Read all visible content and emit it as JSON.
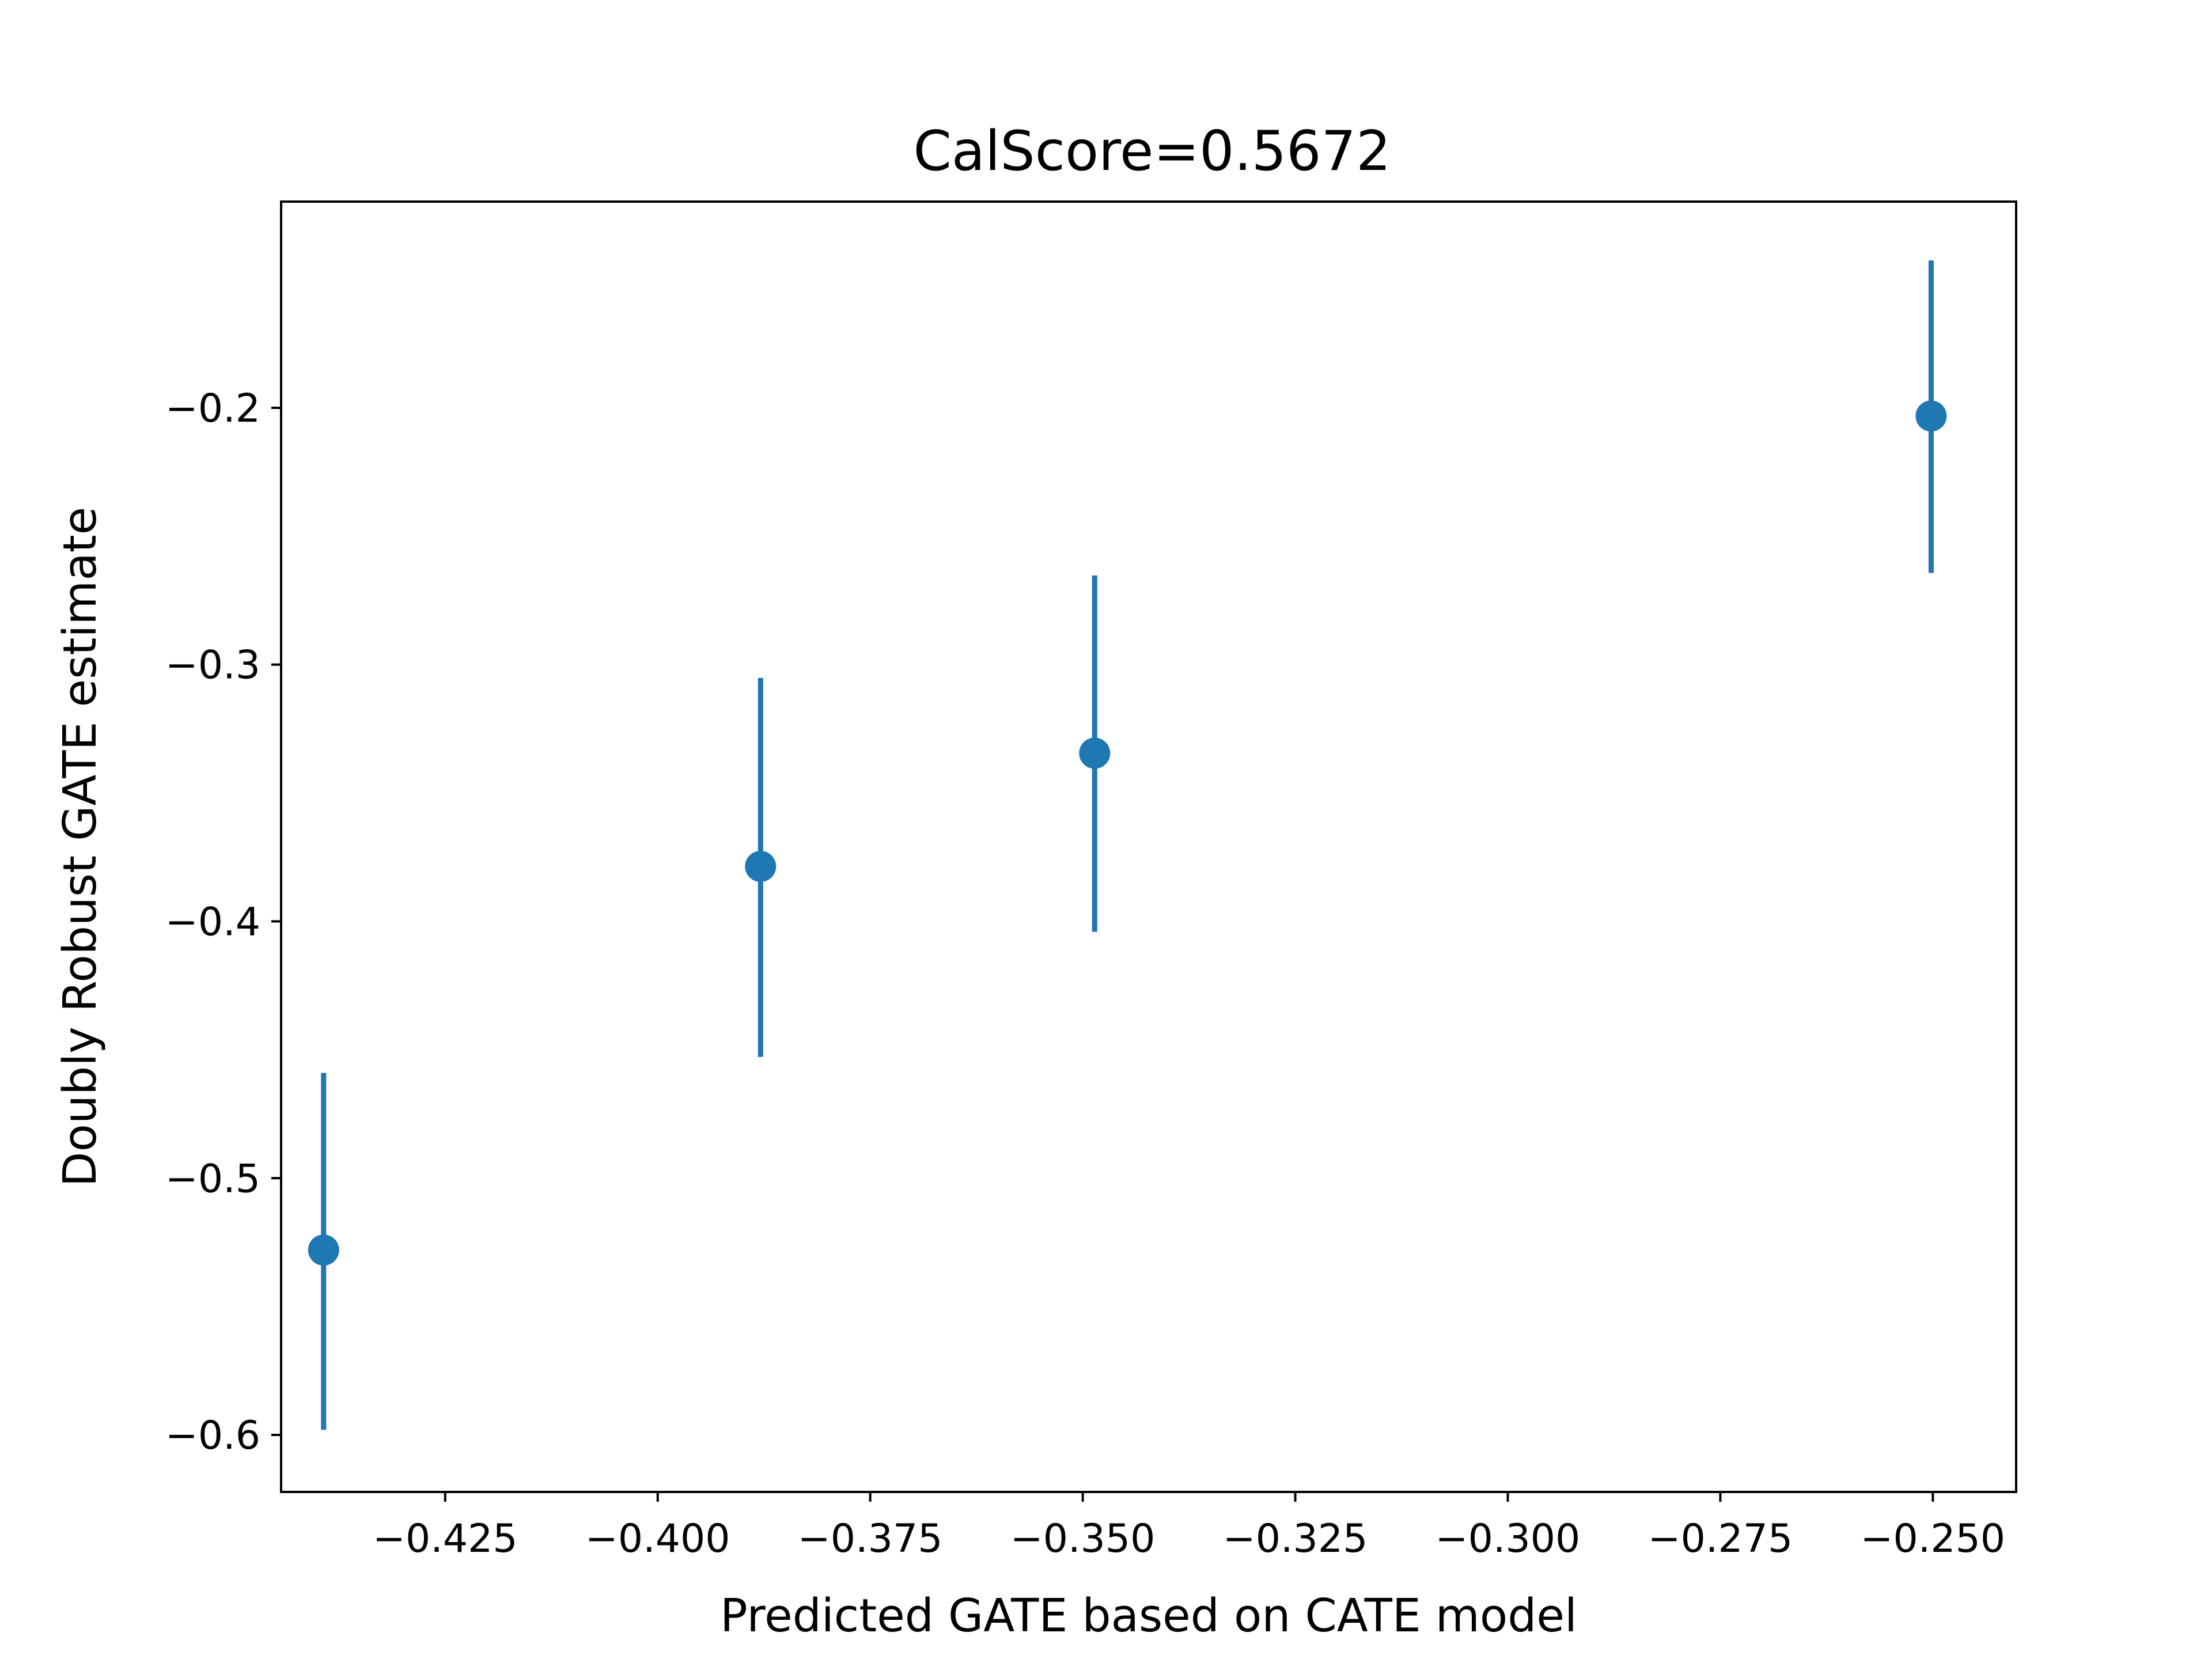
{
  "chart_data": {
    "type": "scatter",
    "title": "CalScore=0.5672",
    "xlabel": "Predicted GATE based on CATE model",
    "ylabel": "Doubly Robust GATE estimate",
    "xlim": [
      -0.4443,
      -0.2402
    ],
    "ylim": [
      -0.6222,
      -0.1197
    ],
    "xticks": [
      -0.425,
      -0.4,
      -0.375,
      -0.35,
      -0.325,
      -0.3,
      -0.275,
      -0.25
    ],
    "xtick_labels": [
      "−0.425",
      "−0.400",
      "−0.375",
      "−0.350",
      "−0.325",
      "−0.300",
      "−0.275",
      "−0.250"
    ],
    "yticks": [
      -0.6,
      -0.5,
      -0.4,
      -0.3,
      -0.2
    ],
    "ytick_labels": [
      "−0.6",
      "−0.5",
      "−0.4",
      "−0.3",
      "−0.2"
    ],
    "grid": false,
    "color": "#1f77b4",
    "series": [
      {
        "points": [
          {
            "x": -0.4393,
            "y": -0.528,
            "y_low": -0.598,
            "y_high": -0.459
          },
          {
            "x": -0.3879,
            "y": -0.3786,
            "y_low": -0.4528,
            "y_high": -0.3052
          },
          {
            "x": -0.3486,
            "y": -0.3345,
            "y_low": -0.4041,
            "y_high": -0.2653
          },
          {
            "x": -0.2502,
            "y": -0.2032,
            "y_low": -0.2643,
            "y_high": -0.1426
          }
        ]
      }
    ]
  }
}
